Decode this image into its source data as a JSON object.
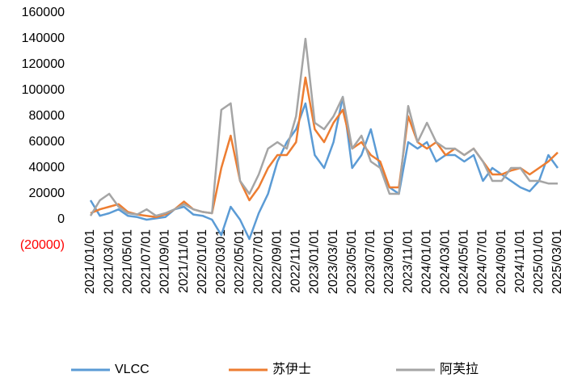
{
  "chart_data": {
    "type": "line",
    "categories": [
      "2021/01/01",
      null,
      "2021/03/01",
      null,
      "2021/05/01",
      null,
      "2021/07/01",
      null,
      "2021/09/01",
      null,
      "2021/11/01",
      null,
      "2022/01/01",
      null,
      "2022/03/01",
      null,
      "2022/05/01",
      null,
      "2022/07/01",
      null,
      "2022/09/01",
      null,
      "2022/11/01",
      null,
      "2023/01/01",
      null,
      "2023/03/01",
      null,
      "2023/05/01",
      null,
      "2023/07/01",
      null,
      "2023/09/01",
      null,
      "2023/11/01",
      null,
      "2024/01/01",
      null,
      "2024/03/01",
      null,
      "2024/05/01",
      null,
      "2024/07/01",
      null,
      "2024/09/01",
      null,
      "2024/11/01",
      null,
      "2025/01/01",
      null,
      "2025/03/01"
    ],
    "series": [
      {
        "name": "VLCC",
        "color": "#5b9bd5",
        "values": [
          15000,
          3000,
          5000,
          8000,
          3000,
          2000,
          0,
          1000,
          2000,
          8000,
          10000,
          4000,
          3000,
          0,
          -12000,
          10000,
          0,
          -15000,
          5000,
          20000,
          45000,
          60000,
          70000,
          90000,
          50000,
          40000,
          60000,
          95000,
          40000,
          50000,
          70000,
          40000,
          25000,
          20000,
          60000,
          55000,
          60000,
          45000,
          50000,
          50000,
          45000,
          50000,
          30000,
          40000,
          35000,
          30000,
          25000,
          22000,
          30000,
          50000,
          40000
        ]
      },
      {
        "name": "苏伊士",
        "color": "#ed7d31",
        "values": [
          5000,
          8000,
          10000,
          12000,
          6000,
          4000,
          3000,
          2000,
          4000,
          8000,
          14000,
          8000,
          6000,
          5000,
          40000,
          65000,
          30000,
          15000,
          25000,
          40000,
          50000,
          50000,
          60000,
          110000,
          70000,
          60000,
          75000,
          85000,
          55000,
          60000,
          50000,
          45000,
          25000,
          25000,
          80000,
          60000,
          55000,
          60000,
          50000,
          55000,
          50000,
          55000,
          45000,
          35000,
          35000,
          38000,
          40000,
          35000,
          40000,
          45000,
          52000
        ]
      },
      {
        "name": "阿芙拉",
        "color": "#a5a5a5",
        "values": [
          3000,
          15000,
          20000,
          10000,
          5000,
          4000,
          8000,
          3000,
          5000,
          8000,
          12000,
          8000,
          6000,
          5000,
          85000,
          90000,
          30000,
          20000,
          35000,
          55000,
          60000,
          55000,
          80000,
          140000,
          75000,
          70000,
          80000,
          95000,
          55000,
          65000,
          45000,
          40000,
          20000,
          20000,
          88000,
          60000,
          75000,
          60000,
          55000,
          55000,
          50000,
          55000,
          45000,
          30000,
          30000,
          40000,
          40000,
          30000,
          30000,
          28000,
          28000
        ]
      }
    ],
    "ylim": [
      -20000,
      160000
    ],
    "yticks": [
      {
        "value": -20000,
        "label": "(20000)"
      },
      0,
      20000,
      40000,
      60000,
      80000,
      100000,
      120000,
      140000,
      160000
    ],
    "negative_tick_color": "#ff0000",
    "legend": "bottom"
  }
}
